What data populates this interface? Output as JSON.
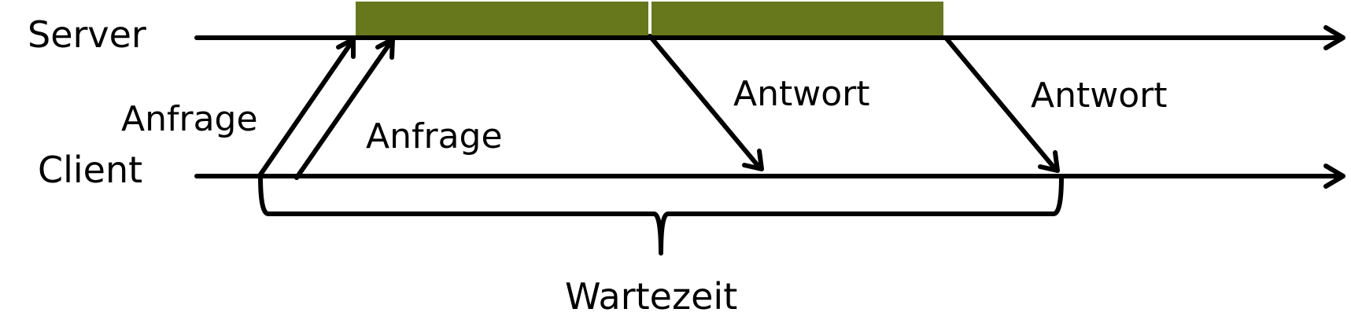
{
  "lanes": {
    "server": "Server",
    "client": "Client"
  },
  "messages": {
    "request_1": "Anfrage",
    "request_2": "Anfrage",
    "response_1": "Antwort",
    "response_2": "Antwort"
  },
  "wait_label": "Wartezeit",
  "colors": {
    "processing_block": "#67771C",
    "line": "#000000"
  }
}
